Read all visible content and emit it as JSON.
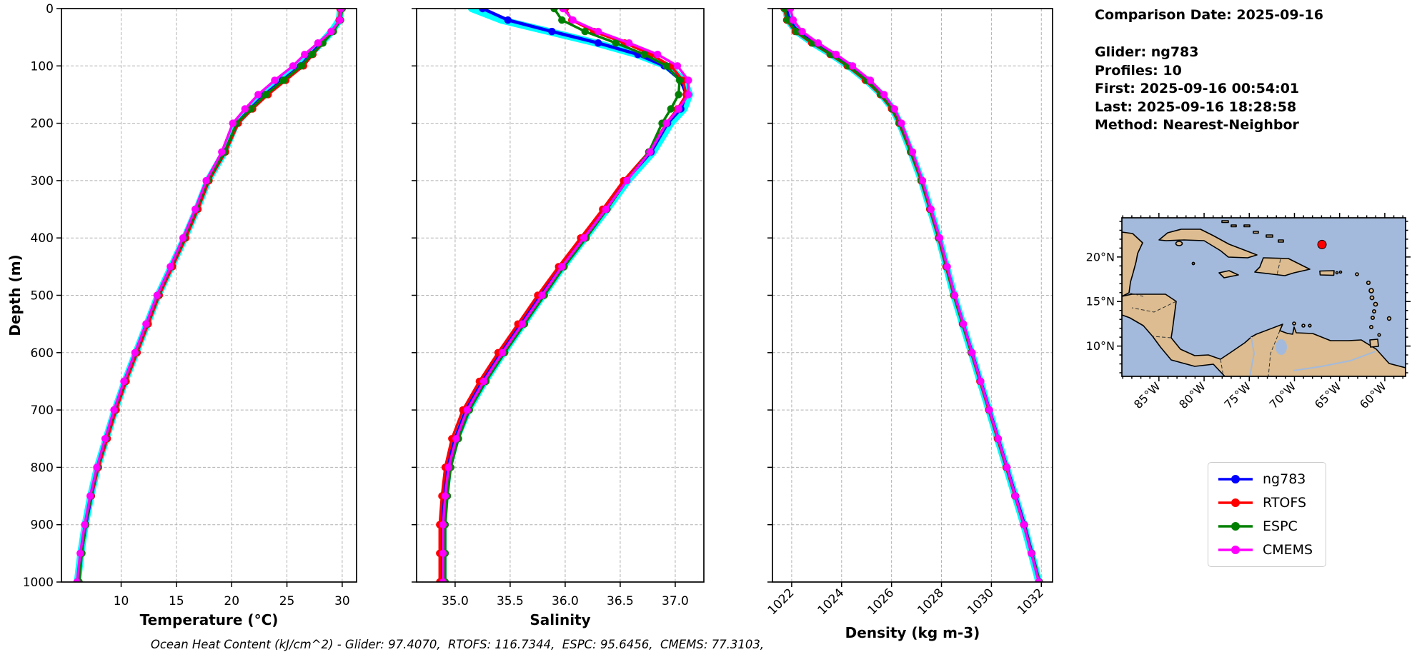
{
  "info": {
    "title": "Comparison Date: 2025-09-16",
    "lines": [
      "Glider: ng783",
      "Profiles: 10",
      "First: 2025-09-16 00:54:01",
      "Last: 2025-09-16 18:28:58",
      "Method: Nearest-Neighbor"
    ]
  },
  "caption": "Ocean Heat Content (kJ/cm^2) - Glider: 97.4070,  RTOFS: 116.7344,  ESPC: 95.6456,  CMEMS: 77.3103,",
  "ocean_heat_content": {
    "units": "kJ/cm^2",
    "glider": 97.407,
    "rtofs": 116.7344,
    "espc": 95.6456,
    "cmems": 77.3103
  },
  "legend": {
    "items": [
      {
        "label": "ng783",
        "color": "#0000ff"
      },
      {
        "label": "RTOFS",
        "color": "#ff0000"
      },
      {
        "label": "ESPC",
        "color": "#008000"
      },
      {
        "label": "CMEMS",
        "color": "#ff00ff"
      }
    ]
  },
  "chart_data": [
    {
      "type": "line",
      "name": "temperature-profile",
      "xlabel": "Temperature (°C)",
      "ylabel": "Depth (m)",
      "xlim": [
        4.6,
        31.3
      ],
      "ylim": [
        1000,
        0
      ],
      "grid": true,
      "show_ytick_labels": true,
      "xtick_rotation": 0,
      "xticks": [
        10,
        15,
        20,
        25,
        30
      ],
      "xtick_labels": [
        "10",
        "15",
        "20",
        "25",
        "30"
      ],
      "yticks": [
        0,
        100,
        200,
        300,
        400,
        500,
        600,
        700,
        800,
        900,
        1000
      ],
      "depths": [
        0,
        20,
        40,
        60,
        80,
        100,
        125,
        150,
        175,
        200,
        250,
        300,
        350,
        400,
        450,
        500,
        550,
        600,
        650,
        700,
        750,
        800,
        850,
        900,
        950,
        1000
      ],
      "series": [
        {
          "name": "glider-profiles",
          "color": "#00ffff",
          "linewidth": 10,
          "marker": false,
          "values": [
            29.85,
            29.75,
            29.05,
            28.1,
            27.1,
            26.2,
            24.5,
            22.9,
            21.6,
            20.4,
            19.35,
            17.85,
            16.85,
            15.75,
            14.55,
            13.35,
            12.35,
            11.35,
            10.35,
            9.45,
            8.65,
            7.85,
            7.25,
            6.75,
            6.35,
            6.05
          ]
        },
        {
          "name": "ng783",
          "color": "#0000ff",
          "linewidth": 4.5,
          "marker": true,
          "values": [
            29.9,
            29.8,
            29.1,
            28.15,
            27.15,
            26.25,
            24.6,
            23.0,
            21.7,
            20.5,
            19.4,
            17.9,
            16.9,
            15.8,
            14.6,
            13.4,
            12.4,
            11.4,
            10.4,
            9.5,
            8.7,
            7.9,
            7.3,
            6.8,
            6.4,
            6.1
          ]
        },
        {
          "name": "RTOFS",
          "color": "#ff0000",
          "linewidth": 3.5,
          "marker": true,
          "values": [
            29.8,
            29.72,
            29.1,
            28.25,
            27.35,
            26.5,
            24.9,
            23.3,
            21.9,
            20.6,
            19.45,
            17.95,
            16.95,
            15.85,
            14.65,
            13.45,
            12.45,
            11.45,
            10.45,
            9.55,
            8.75,
            7.95,
            7.3,
            6.75,
            6.35,
            6.05
          ]
        },
        {
          "name": "ESPC",
          "color": "#008000",
          "linewidth": 3.5,
          "marker": true,
          "values": [
            30.0,
            29.85,
            29.2,
            28.25,
            27.25,
            26.3,
            24.7,
            23.1,
            21.75,
            20.45,
            19.35,
            17.8,
            16.8,
            15.7,
            14.5,
            13.3,
            12.3,
            11.3,
            10.3,
            9.4,
            8.6,
            7.85,
            7.25,
            6.8,
            6.45,
            6.2
          ]
        },
        {
          "name": "CMEMS",
          "color": "#ff00ff",
          "linewidth": 3.5,
          "marker": true,
          "values": [
            29.9,
            29.78,
            29.0,
            27.8,
            26.6,
            25.55,
            23.9,
            22.4,
            21.2,
            20.1,
            19.1,
            17.7,
            16.7,
            15.6,
            14.45,
            13.25,
            12.25,
            11.25,
            10.25,
            9.35,
            8.55,
            7.8,
            7.2,
            6.7,
            6.3,
            6.0
          ]
        }
      ]
    },
    {
      "type": "line",
      "name": "salinity-profile",
      "xlabel": "Salinity",
      "ylabel": "",
      "xlim": [
        34.65,
        37.26
      ],
      "ylim": [
        1000,
        0
      ],
      "grid": true,
      "show_ytick_labels": false,
      "xtick_rotation": 0,
      "xticks": [
        35.0,
        35.5,
        36.0,
        36.5,
        37.0
      ],
      "xtick_labels": [
        "35.0",
        "35.5",
        "36.0",
        "36.5",
        "37.0"
      ],
      "yticks": [
        0,
        100,
        200,
        300,
        400,
        500,
        600,
        700,
        800,
        900,
        1000
      ],
      "depths": [
        0,
        20,
        40,
        60,
        80,
        100,
        125,
        150,
        175,
        200,
        250,
        300,
        350,
        400,
        450,
        500,
        550,
        600,
        650,
        700,
        750,
        800,
        850,
        900,
        950,
        1000
      ],
      "series": [
        {
          "name": "glider-profiles",
          "color": "#00ffff",
          "linewidth": 10,
          "marker": false,
          "values": [
            35.15,
            35.42,
            35.85,
            36.28,
            36.65,
            36.92,
            37.08,
            37.13,
            37.08,
            36.96,
            36.8,
            36.57,
            36.38,
            36.18,
            35.98,
            35.8,
            35.62,
            35.44,
            35.27,
            35.12,
            35.01,
            34.94,
            34.91,
            34.89,
            34.89,
            34.89
          ]
        },
        {
          "name": "ng783",
          "color": "#0000ff",
          "linewidth": 4.5,
          "marker": true,
          "values": [
            35.25,
            35.48,
            35.88,
            36.3,
            36.66,
            36.9,
            37.05,
            37.1,
            37.05,
            36.93,
            36.78,
            36.55,
            36.36,
            36.16,
            35.96,
            35.78,
            35.6,
            35.42,
            35.25,
            35.1,
            35.0,
            34.93,
            34.9,
            34.88,
            34.88,
            34.88
          ]
        },
        {
          "name": "RTOFS",
          "color": "#ff0000",
          "linewidth": 3.5,
          "marker": true,
          "values": [
            36.0,
            36.06,
            36.26,
            36.54,
            36.78,
            36.96,
            37.07,
            37.1,
            37.02,
            36.92,
            36.76,
            36.53,
            36.34,
            36.14,
            35.94,
            35.75,
            35.57,
            35.39,
            35.22,
            35.07,
            34.97,
            34.91,
            34.88,
            34.86,
            34.86,
            34.86
          ]
        },
        {
          "name": "ESPC",
          "color": "#008000",
          "linewidth": 3.5,
          "marker": true,
          "values": [
            35.9,
            35.97,
            36.18,
            36.46,
            36.72,
            36.92,
            37.04,
            37.03,
            36.96,
            36.88,
            36.76,
            36.56,
            36.38,
            36.19,
            35.99,
            35.81,
            35.63,
            35.45,
            35.28,
            35.13,
            35.03,
            34.96,
            34.93,
            34.91,
            34.91,
            34.91
          ]
        },
        {
          "name": "CMEMS",
          "color": "#ff00ff",
          "linewidth": 3.5,
          "marker": true,
          "values": [
            35.98,
            36.07,
            36.3,
            36.58,
            36.84,
            37.02,
            37.12,
            37.12,
            37.03,
            36.92,
            36.77,
            36.56,
            36.37,
            36.17,
            35.97,
            35.79,
            35.61,
            35.43,
            35.26,
            35.11,
            35.01,
            34.94,
            34.91,
            34.89,
            34.89,
            34.89
          ]
        }
      ]
    },
    {
      "type": "line",
      "name": "density-profile",
      "xlabel": "Density (kg m-3)",
      "ylabel": "",
      "xlim": [
        1021.23,
        1032.45
      ],
      "ylim": [
        1000,
        0
      ],
      "grid": true,
      "show_ytick_labels": false,
      "xtick_rotation": 45,
      "xticks": [
        1022,
        1024,
        1026,
        1028,
        1030,
        1032
      ],
      "xtick_labels": [
        "1022",
        "1024",
        "1026",
        "1028",
        "1030",
        "1032"
      ],
      "yticks": [
        0,
        100,
        200,
        300,
        400,
        500,
        600,
        700,
        800,
        900,
        1000
      ],
      "depths": [
        0,
        20,
        40,
        60,
        80,
        100,
        125,
        150,
        175,
        200,
        250,
        300,
        350,
        400,
        450,
        500,
        550,
        600,
        650,
        700,
        750,
        800,
        850,
        900,
        950,
        1000
      ],
      "series": [
        {
          "name": "glider-profiles",
          "color": "#00ffff",
          "linewidth": 10,
          "marker": false,
          "values": [
            1021.75,
            1021.85,
            1022.2,
            1022.85,
            1023.6,
            1024.28,
            1025.0,
            1025.6,
            1026.05,
            1026.33,
            1026.78,
            1027.2,
            1027.55,
            1027.9,
            1028.2,
            1028.5,
            1028.85,
            1029.2,
            1029.55,
            1029.9,
            1030.25,
            1030.6,
            1030.95,
            1031.3,
            1031.6,
            1031.9
          ]
        },
        {
          "name": "ng783",
          "color": "#0000ff",
          "linewidth": 4.5,
          "marker": true,
          "values": [
            1021.8,
            1021.9,
            1022.24,
            1022.9,
            1023.64,
            1024.32,
            1025.05,
            1025.63,
            1026.08,
            1026.36,
            1026.8,
            1027.22,
            1027.57,
            1027.92,
            1028.22,
            1028.52,
            1028.87,
            1029.22,
            1029.57,
            1029.92,
            1030.27,
            1030.62,
            1030.97,
            1031.32,
            1031.62,
            1031.92
          ]
        },
        {
          "name": "RTOFS",
          "color": "#ff0000",
          "linewidth": 3.5,
          "marker": true,
          "values": [
            1021.7,
            1021.8,
            1022.14,
            1022.8,
            1023.54,
            1024.22,
            1024.95,
            1025.55,
            1026.0,
            1026.3,
            1026.76,
            1027.18,
            1027.53,
            1027.88,
            1028.18,
            1028.49,
            1028.84,
            1029.19,
            1029.54,
            1029.89,
            1030.24,
            1030.59,
            1030.94,
            1031.29,
            1031.6,
            1031.9
          ]
        },
        {
          "name": "ESPC",
          "color": "#008000",
          "linewidth": 3.5,
          "marker": true,
          "values": [
            1021.72,
            1021.83,
            1022.18,
            1022.84,
            1023.58,
            1024.26,
            1025.0,
            1025.58,
            1026.03,
            1026.32,
            1026.78,
            1027.2,
            1027.55,
            1027.9,
            1028.2,
            1028.5,
            1028.85,
            1029.2,
            1029.56,
            1029.91,
            1030.26,
            1030.61,
            1030.96,
            1031.31,
            1031.62,
            1031.93
          ]
        },
        {
          "name": "CMEMS",
          "color": "#ff00ff",
          "linewidth": 3.5,
          "marker": true,
          "values": [
            1021.95,
            1022.06,
            1022.42,
            1023.06,
            1023.78,
            1024.44,
            1025.15,
            1025.7,
            1026.12,
            1026.4,
            1026.84,
            1027.24,
            1027.58,
            1027.93,
            1028.23,
            1028.53,
            1028.88,
            1029.22,
            1029.57,
            1029.92,
            1030.27,
            1030.62,
            1030.96,
            1031.3,
            1031.6,
            1031.9
          ]
        }
      ]
    },
    {
      "type": "map",
      "name": "location-map",
      "lon_range": [
        -89.1,
        -57.7
      ],
      "lat_range": [
        6.6,
        24.4
      ],
      "xtick_lons": [
        -85,
        -80,
        -75,
        -70,
        -65,
        -60
      ],
      "xtick_labels": [
        "85°W",
        "80°W",
        "75°W",
        "70°W",
        "65°W",
        "60°W"
      ],
      "ytick_lats": [
        20,
        15,
        10
      ],
      "ytick_labels": [
        "20°N",
        "15°N",
        "10°N"
      ],
      "marker": {
        "lon": -66.95,
        "lat": 21.4,
        "color": "#ff0000"
      },
      "land_color": "#dcbc90",
      "ocean_color": "#a3badc"
    }
  ]
}
